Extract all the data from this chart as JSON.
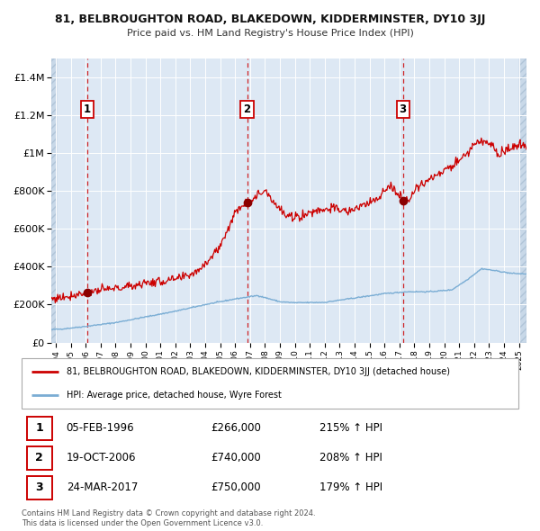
{
  "title1": "81, BELBROUGHTON ROAD, BLAKEDOWN, KIDDERMINSTER, DY10 3JJ",
  "title2": "Price paid vs. HM Land Registry's House Price Index (HPI)",
  "ylabel_ticks": [
    "£0",
    "£200K",
    "£400K",
    "£600K",
    "£800K",
    "£1M",
    "£1.2M",
    "£1.4M"
  ],
  "ytick_values": [
    0,
    200000,
    400000,
    600000,
    800000,
    1000000,
    1200000,
    1400000
  ],
  "ylim": [
    0,
    1500000
  ],
  "xlim_start": 1993.7,
  "xlim_end": 2025.5,
  "sale1_date": 1996.1,
  "sale1_price": 266000,
  "sale1_label": "1",
  "sale1_text": "05-FEB-1996",
  "sale1_amount": "£266,000",
  "sale1_hpi": "215% ↑ HPI",
  "sale2_date": 2006.8,
  "sale2_price": 740000,
  "sale2_label": "2",
  "sale2_text": "19-OCT-2006",
  "sale2_amount": "£740,000",
  "sale2_hpi": "208% ↑ HPI",
  "sale3_date": 2017.23,
  "sale3_price": 750000,
  "sale3_label": "3",
  "sale3_text": "24-MAR-2017",
  "sale3_amount": "£750,000",
  "sale3_hpi": "179% ↑ HPI",
  "line_color": "#cc0000",
  "hpi_color": "#7aadd4",
  "background_color": "#dde8f4",
  "grid_color": "#ffffff",
  "dashed_vline_color": "#cc0000",
  "legend_label1": "81, BELBROUGHTON ROAD, BLAKEDOWN, KIDDERMINSTER, DY10 3JJ (detached house)",
  "legend_label2": "HPI: Average price, detached house, Wyre Forest",
  "footer1": "Contains HM Land Registry data © Crown copyright and database right 2024.",
  "footer2": "This data is licensed under the Open Government Licence v3.0.",
  "hpi_anchors_t": [
    1993.7,
    1994.5,
    1996.0,
    1998.0,
    2000.0,
    2002.0,
    2004.0,
    2006.0,
    2007.5,
    2009.0,
    2010.0,
    2012.0,
    2014.0,
    2016.0,
    2017.5,
    2019.0,
    2020.5,
    2021.5,
    2022.5,
    2023.5,
    2024.5,
    2025.5
  ],
  "hpi_anchors_v": [
    68000,
    72000,
    85000,
    105000,
    135000,
    165000,
    200000,
    230000,
    248000,
    215000,
    210000,
    212000,
    235000,
    258000,
    268000,
    268000,
    278000,
    330000,
    390000,
    378000,
    365000,
    362000
  ],
  "prop_anchors_t": [
    1993.7,
    1994.5,
    1996.1,
    1997.0,
    1998.5,
    2000.0,
    2001.5,
    2002.5,
    2003.5,
    2004.5,
    2005.0,
    2005.8,
    2006.3,
    2006.8,
    2007.3,
    2008.0,
    2008.8,
    2009.5,
    2010.5,
    2011.5,
    2012.5,
    2013.5,
    2014.5,
    2015.5,
    2016.0,
    2016.5,
    2017.23,
    2017.8,
    2018.5,
    2019.5,
    2020.5,
    2021.5,
    2022.2,
    2022.8,
    2023.2,
    2023.7,
    2024.0,
    2024.5,
    2025.0,
    2025.5
  ],
  "prop_anchors_v": [
    230000,
    240000,
    266000,
    275000,
    290000,
    315000,
    325000,
    340000,
    380000,
    460000,
    510000,
    650000,
    720000,
    740000,
    760000,
    810000,
    720000,
    660000,
    670000,
    700000,
    710000,
    690000,
    720000,
    760000,
    800000,
    820000,
    750000,
    780000,
    840000,
    880000,
    930000,
    1000000,
    1060000,
    1060000,
    1050000,
    980000,
    1010000,
    1030000,
    1040000,
    1030000
  ]
}
